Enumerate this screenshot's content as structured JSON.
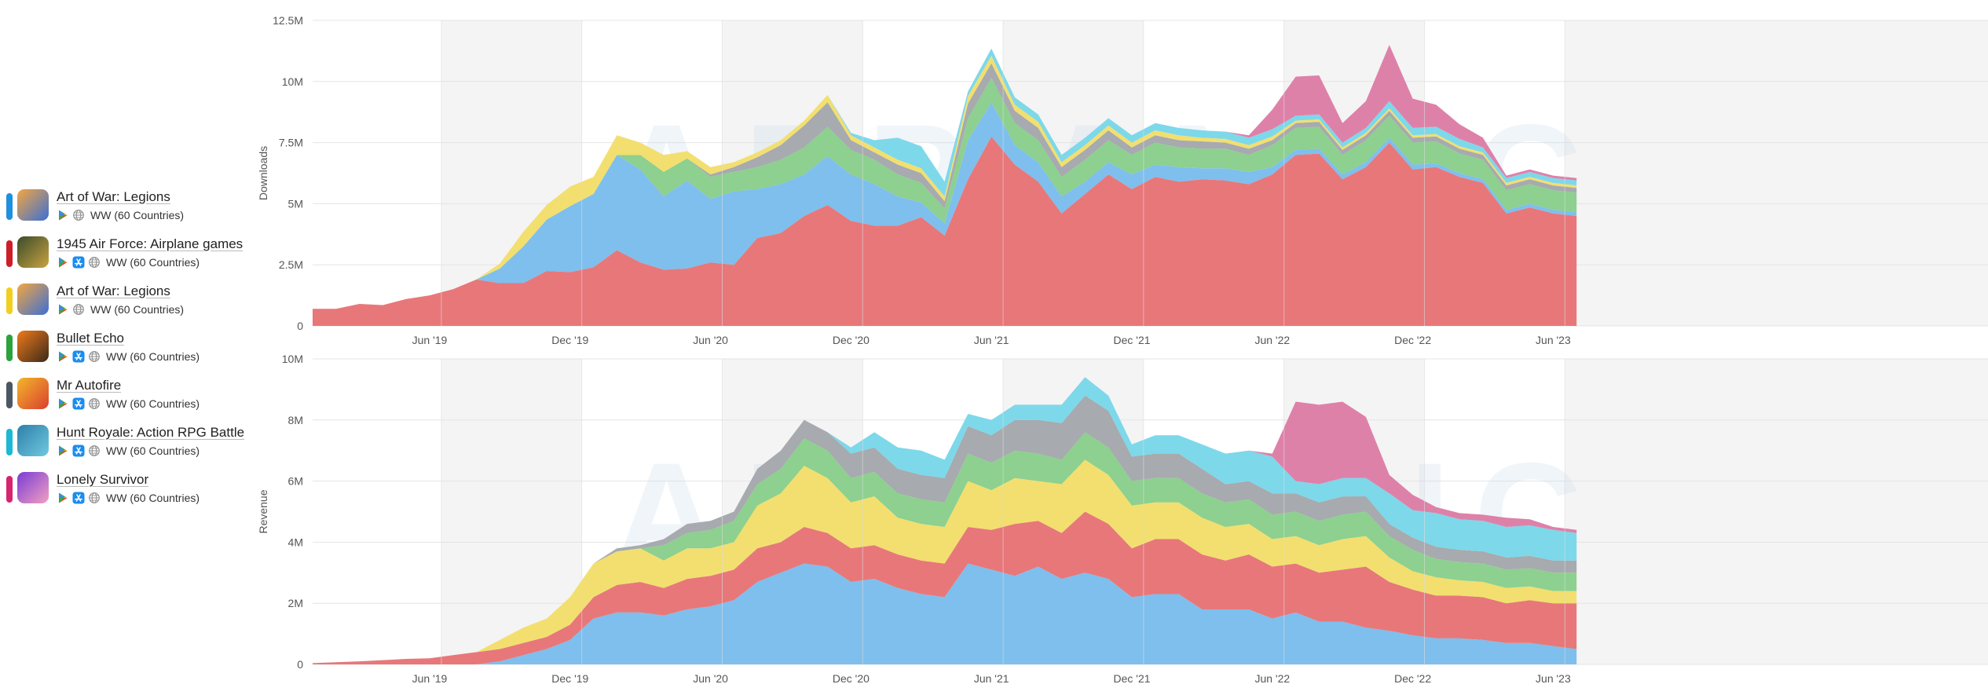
{
  "watermark": "APPMAGIC",
  "legend": [
    {
      "name": "Art of War: Legions",
      "color": "#1f8fe0",
      "region": "WW (60 Countries)",
      "stores": [
        "google-play-icon",
        "globe-icon"
      ],
      "thumb": [
        "#f4a640",
        "#3b6fd6"
      ]
    },
    {
      "name": "1945 Air Force: Airplane games",
      "color": "#cc1d2a",
      "region": "WW (60 Countries)",
      "stores": [
        "google-play-icon",
        "app-store-icon",
        "globe-icon"
      ],
      "thumb": [
        "#3a4b2a",
        "#c9a341"
      ]
    },
    {
      "name": "Art of War: Legions",
      "color": "#f3cf1d",
      "region": "WW (60 Countries)",
      "stores": [
        "google-play-icon",
        "globe-icon"
      ],
      "thumb": [
        "#f4a640",
        "#3b6fd6"
      ]
    },
    {
      "name": "Bullet Echo",
      "color": "#2aa33d",
      "region": "WW (60 Countries)",
      "stores": [
        "google-play-icon",
        "app-store-icon",
        "globe-icon"
      ],
      "thumb": [
        "#f07a1a",
        "#3a2a1a"
      ]
    },
    {
      "name": "Mr Autofire",
      "color": "#4b5863",
      "region": "WW (60 Countries)",
      "stores": [
        "google-play-icon",
        "app-store-icon",
        "globe-icon"
      ],
      "thumb": [
        "#f4b62a",
        "#d9402f"
      ]
    },
    {
      "name": "Hunt Royale: Action RPG Battle",
      "color": "#1bb9d4",
      "region": "WW (60 Countries)",
      "stores": [
        "google-play-icon",
        "app-store-icon",
        "globe-icon"
      ],
      "thumb": [
        "#2e7fa8",
        "#6fc9e0"
      ]
    },
    {
      "name": "Lonely Survivor",
      "color": "#d6246f",
      "region": "WW (60 Countries)",
      "stores": [
        "google-play-icon",
        "app-store-icon",
        "globe-icon"
      ],
      "thumb": [
        "#7a3bd6",
        "#f2a0c0"
      ]
    }
  ],
  "chart_data": [
    {
      "type": "area",
      "stacked": true,
      "ylabel": "Downloads",
      "ylim": [
        0,
        12.5
      ],
      "unit": "M",
      "yticks": [
        "0",
        "2.5M",
        "5M",
        "7.5M",
        "10M",
        "12.5M"
      ],
      "xticks": [
        "Jun '19",
        "Dec '19",
        "Jun '20",
        "Dec '20",
        "Jun '21",
        "Dec '21",
        "Jun '22",
        "Dec '22",
        "Jun '23"
      ],
      "shaded_bands": true,
      "grid": true,
      "series": [
        {
          "name": "1945 Air Force: Airplane games",
          "color": "#e8777a",
          "values": [
            0.7,
            0.7,
            0.9,
            0.85,
            1.1,
            1.25,
            1.5,
            1.9,
            1.75,
            1.75,
            2.25,
            2.2,
            2.4,
            3.1,
            2.6,
            2.3,
            2.35,
            2.6,
            2.5,
            3.6,
            3.8,
            4.5,
            4.95,
            4.3,
            4.1,
            4.1,
            4.45,
            3.7,
            6.0,
            7.75,
            6.6,
            5.9,
            4.6,
            5.4,
            6.2,
            5.6,
            6.1,
            5.9,
            6.0,
            5.95,
            5.8,
            6.2,
            7.0,
            7.05,
            6.0,
            6.5,
            7.5,
            6.4,
            6.5,
            6.1,
            5.85,
            4.6,
            4.85,
            4.6,
            4.5
          ]
        },
        {
          "name": "Art of War: Legions",
          "color": "#7ebfed",
          "values": [
            0,
            0,
            0,
            0,
            0,
            0,
            0,
            0,
            0.6,
            1.5,
            2.1,
            2.7,
            3.0,
            3.9,
            3.8,
            3.0,
            3.6,
            2.6,
            3.0,
            2.0,
            2.0,
            1.7,
            2.0,
            1.9,
            1.7,
            1.2,
            0.6,
            0.5,
            1.6,
            1.4,
            0.8,
            0.8,
            0.7,
            0.5,
            0.5,
            0.6,
            0.5,
            0.6,
            0.45,
            0.5,
            0.5,
            0.3,
            0.2,
            0.2,
            0.2,
            0.2,
            0.2,
            0.2,
            0.15,
            0.15,
            0.15,
            0.15,
            0.15,
            0.15,
            0.15
          ]
        },
        {
          "name": "Bullet Echo",
          "color": "#8dd08f",
          "values": [
            0,
            0,
            0,
            0,
            0,
            0,
            0,
            0,
            0,
            0,
            0,
            0,
            0,
            0,
            0.6,
            1.0,
            0.9,
            0.9,
            0.8,
            0.9,
            1.0,
            1.1,
            1.2,
            1.0,
            1.0,
            0.9,
            0.8,
            0.6,
            0.9,
            1.0,
            0.9,
            0.9,
            0.8,
            0.9,
            0.9,
            0.8,
            0.9,
            0.8,
            0.8,
            0.8,
            0.7,
            0.9,
            0.9,
            0.9,
            0.8,
            0.9,
            0.9,
            0.9,
            0.9,
            0.8,
            0.8,
            0.8,
            0.8,
            0.8,
            0.8
          ]
        },
        {
          "name": "Mr Autofire",
          "color": "#a7aaae",
          "values": [
            0,
            0,
            0,
            0,
            0,
            0,
            0,
            0,
            0,
            0,
            0,
            0,
            0,
            0,
            0,
            0,
            0,
            0.1,
            0.2,
            0.4,
            0.6,
            0.9,
            1.0,
            0.4,
            0.3,
            0.4,
            0.4,
            0.3,
            0.6,
            0.6,
            0.5,
            0.5,
            0.4,
            0.4,
            0.4,
            0.3,
            0.3,
            0.3,
            0.3,
            0.25,
            0.25,
            0.2,
            0.2,
            0.2,
            0.2,
            0.2,
            0.2,
            0.2,
            0.2,
            0.2,
            0.2,
            0.2,
            0.2,
            0.2,
            0.2
          ]
        },
        {
          "name": "Art of War: Legions",
          "color": "#f2df6f",
          "values": [
            0,
            0,
            0,
            0,
            0,
            0,
            0,
            0,
            0.2,
            0.6,
            0.6,
            0.8,
            0.7,
            0.8,
            0.5,
            0.7,
            0.3,
            0.3,
            0.2,
            0.2,
            0.2,
            0.2,
            0.3,
            0.2,
            0.2,
            0.2,
            0.2,
            0.2,
            0.3,
            0.3,
            0.25,
            0.25,
            0.2,
            0.2,
            0.2,
            0.2,
            0.2,
            0.2,
            0.15,
            0.15,
            0.15,
            0.15,
            0.1,
            0.1,
            0.1,
            0.1,
            0.1,
            0.1,
            0.1,
            0.1,
            0.1,
            0.1,
            0.1,
            0.1,
            0.1
          ]
        },
        {
          "name": "Hunt Royale: Action RPG Battle",
          "color": "#7dd8ea",
          "values": [
            0,
            0,
            0,
            0,
            0,
            0,
            0,
            0,
            0,
            0,
            0,
            0,
            0,
            0,
            0,
            0,
            0,
            0,
            0,
            0,
            0,
            0,
            0,
            0.1,
            0.3,
            0.9,
            0.9,
            0.6,
            0.2,
            0.3,
            0.3,
            0.3,
            0.3,
            0.3,
            0.3,
            0.3,
            0.3,
            0.3,
            0.3,
            0.3,
            0.3,
            0.3,
            0.2,
            0.2,
            0.2,
            0.2,
            0.3,
            0.3,
            0.3,
            0.3,
            0.2,
            0.2,
            0.2,
            0.2,
            0.2
          ]
        },
        {
          "name": "Lonely Survivor",
          "color": "#de81a9",
          "values": [
            0,
            0,
            0,
            0,
            0,
            0,
            0,
            0,
            0,
            0,
            0,
            0,
            0,
            0,
            0,
            0,
            0,
            0,
            0,
            0,
            0,
            0,
            0,
            0,
            0,
            0,
            0,
            0,
            0,
            0,
            0,
            0,
            0,
            0,
            0,
            0,
            0,
            0,
            0,
            0,
            0.1,
            0.8,
            1.6,
            1.6,
            0.8,
            1.1,
            2.3,
            1.2,
            0.9,
            0.6,
            0.4,
            0.1,
            0.1,
            0.1,
            0.1
          ]
        }
      ]
    },
    {
      "type": "area",
      "stacked": true,
      "ylabel": "Revenue",
      "ylim": [
        0,
        10
      ],
      "unit": "M",
      "yticks": [
        "0",
        "2M",
        "4M",
        "6M",
        "8M",
        "10M"
      ],
      "xticks": [
        "Jun '19",
        "Dec '19",
        "Jun '20",
        "Dec '20",
        "Jun '21",
        "Dec '21",
        "Jun '22",
        "Dec '22",
        "Jun '23"
      ],
      "shaded_bands": true,
      "grid": true,
      "series": [
        {
          "name": "Art of War: Legions",
          "color": "#7ebfed",
          "values": [
            0,
            0,
            0,
            0,
            0,
            0,
            0,
            0,
            0.1,
            0.3,
            0.5,
            0.8,
            1.5,
            1.7,
            1.7,
            1.6,
            1.8,
            1.9,
            2.1,
            2.7,
            3.0,
            3.3,
            3.2,
            2.7,
            2.8,
            2.5,
            2.3,
            2.2,
            3.3,
            3.1,
            2.9,
            3.2,
            2.8,
            3.0,
            2.8,
            2.2,
            2.3,
            2.3,
            1.8,
            1.8,
            1.8,
            1.5,
            1.7,
            1.4,
            1.4,
            1.2,
            1.1,
            0.95,
            0.85,
            0.85,
            0.8,
            0.7,
            0.7,
            0.6,
            0.5
          ]
        },
        {
          "name": "1945 Air Force: Airplane games",
          "color": "#e8777a",
          "values": [
            0.04,
            0.07,
            0.1,
            0.14,
            0.18,
            0.2,
            0.3,
            0.4,
            0.4,
            0.4,
            0.4,
            0.5,
            0.7,
            0.9,
            1.0,
            0.9,
            1.0,
            1.0,
            1.0,
            1.1,
            1.0,
            1.2,
            1.1,
            1.1,
            1.1,
            1.1,
            1.1,
            1.1,
            1.2,
            1.3,
            1.7,
            1.5,
            1.5,
            2.0,
            1.8,
            1.6,
            1.8,
            1.8,
            1.8,
            1.6,
            1.8,
            1.7,
            1.6,
            1.6,
            1.7,
            2.0,
            1.6,
            1.5,
            1.4,
            1.4,
            1.4,
            1.3,
            1.4,
            1.4,
            1.5
          ]
        },
        {
          "name": "Art of War: Legions",
          "color": "#f2df6f",
          "values": [
            0,
            0,
            0,
            0,
            0,
            0,
            0,
            0,
            0.3,
            0.5,
            0.6,
            0.9,
            1.1,
            1.1,
            1.1,
            0.9,
            1.0,
            0.9,
            0.9,
            1.4,
            1.6,
            2.0,
            1.8,
            1.5,
            1.6,
            1.2,
            1.2,
            1.2,
            1.5,
            1.3,
            1.5,
            1.3,
            1.6,
            1.7,
            1.6,
            1.4,
            1.2,
            1.2,
            1.2,
            1.1,
            1.0,
            0.9,
            0.9,
            0.9,
            1.0,
            1.0,
            0.8,
            0.6,
            0.6,
            0.5,
            0.5,
            0.5,
            0.45,
            0.4,
            0.4
          ]
        },
        {
          "name": "Bullet Echo",
          "color": "#8dd08f",
          "values": [
            0,
            0,
            0,
            0,
            0,
            0,
            0,
            0,
            0,
            0,
            0,
            0,
            0,
            0,
            0,
            0.5,
            0.5,
            0.6,
            0.7,
            0.7,
            0.8,
            0.9,
            0.9,
            0.8,
            0.8,
            0.8,
            0.8,
            0.8,
            0.9,
            0.9,
            0.9,
            0.9,
            0.8,
            0.9,
            0.9,
            0.8,
            0.8,
            0.8,
            0.8,
            0.8,
            0.8,
            0.8,
            0.8,
            0.8,
            0.8,
            0.8,
            0.7,
            0.7,
            0.6,
            0.6,
            0.6,
            0.6,
            0.6,
            0.6,
            0.6
          ]
        },
        {
          "name": "Mr Autofire",
          "color": "#a7aaae",
          "values": [
            0,
            0,
            0,
            0,
            0,
            0,
            0,
            0,
            0,
            0,
            0,
            0,
            0,
            0.1,
            0.1,
            0.2,
            0.3,
            0.3,
            0.3,
            0.5,
            0.6,
            0.6,
            0.6,
            0.8,
            0.8,
            0.8,
            0.8,
            0.8,
            0.9,
            0.9,
            1.0,
            1.1,
            1.2,
            1.2,
            1.2,
            0.8,
            0.8,
            0.8,
            0.8,
            0.6,
            0.6,
            0.7,
            0.6,
            0.6,
            0.6,
            0.5,
            0.4,
            0.4,
            0.4,
            0.4,
            0.4,
            0.4,
            0.4,
            0.4,
            0.4
          ]
        },
        {
          "name": "Hunt Royale: Action RPG Battle",
          "color": "#7dd8ea",
          "values": [
            0,
            0,
            0,
            0,
            0,
            0,
            0,
            0,
            0,
            0,
            0,
            0,
            0,
            0,
            0,
            0,
            0,
            0,
            0,
            0,
            0,
            0,
            0,
            0.2,
            0.5,
            0.7,
            0.8,
            0.6,
            0.4,
            0.5,
            0.5,
            0.5,
            0.6,
            0.6,
            0.5,
            0.4,
            0.6,
            0.6,
            0.8,
            1.0,
            1.0,
            1.2,
            0.4,
            0.6,
            0.6,
            0.6,
            1.0,
            0.9,
            1.1,
            1.0,
            1.0,
            1.0,
            1.0,
            1.0,
            0.9
          ]
        },
        {
          "name": "Lonely Survivor",
          "color": "#de81a9",
          "values": [
            0,
            0,
            0,
            0,
            0,
            0,
            0,
            0,
            0,
            0,
            0,
            0,
            0,
            0,
            0,
            0,
            0,
            0,
            0,
            0,
            0,
            0,
            0,
            0,
            0,
            0,
            0,
            0,
            0,
            0,
            0,
            0,
            0,
            0,
            0,
            0,
            0,
            0,
            0,
            0,
            0,
            0.1,
            2.6,
            2.6,
            2.5,
            2.0,
            0.6,
            0.5,
            0.2,
            0.2,
            0.2,
            0.3,
            0.2,
            0.1,
            0.1
          ]
        }
      ]
    }
  ]
}
